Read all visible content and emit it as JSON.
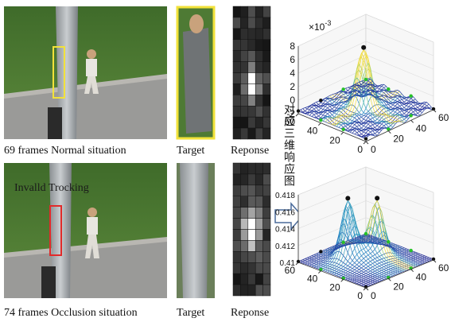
{
  "rows": [
    {
      "caption": "69 frames Normal situation",
      "target_label": "Target",
      "response_label": "Reponse"
    },
    {
      "caption": "74 frames Occlusion situation",
      "target_label": "Target",
      "response_label": "Reponse",
      "annotation": "Invalld Trocking"
    }
  ],
  "side_label": "对应三维响应图",
  "plots": [
    {
      "z_multiplier": "×10",
      "z_exponent": "-3",
      "zlim": [
        -2,
        8
      ],
      "zticks": [
        -2,
        0,
        2,
        4,
        6,
        8
      ],
      "xlim": [
        0,
        60
      ],
      "xticks": [
        0,
        20,
        40,
        60
      ],
      "ylim": [
        0,
        60
      ],
      "yticks": [
        0,
        20,
        40,
        60
      ]
    },
    {
      "zlim": [
        0.41,
        0.418
      ],
      "zticks": [
        0.41,
        0.412,
        0.414,
        0.416,
        0.418
      ],
      "xlim": [
        0,
        60
      ],
      "xticks": [
        0,
        20,
        40,
        60
      ],
      "ylim": [
        0,
        60
      ],
      "yticks": [
        0,
        20,
        40,
        60
      ]
    }
  ]
}
